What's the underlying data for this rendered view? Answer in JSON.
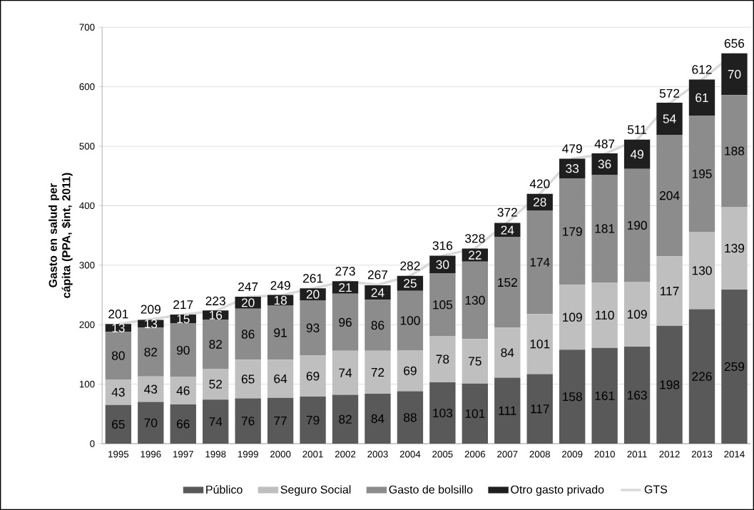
{
  "chart_data": {
    "type": "bar",
    "stacked": true,
    "ylabel": "Gasto en salud per cápita (PPA, $int, 2011)",
    "categories": [
      "1995",
      "1996",
      "1997",
      "1998",
      "1999",
      "2000",
      "2001",
      "2002",
      "2003",
      "2004",
      "2005",
      "2006",
      "2007",
      "2008",
      "2009",
      "2010",
      "2011",
      "2012",
      "2013",
      "2014"
    ],
    "ylim": [
      0,
      700
    ],
    "yticks": [
      0,
      100,
      200,
      300,
      400,
      500,
      600,
      700
    ],
    "grid": "y",
    "legend": "bottom",
    "data_labels": true,
    "series": [
      {
        "name": "Público",
        "color": "#595959",
        "values": [
          65,
          70,
          66,
          74,
          76,
          77,
          79,
          82,
          84,
          88,
          103,
          101,
          111,
          117,
          158,
          161,
          163,
          198,
          226,
          259
        ]
      },
      {
        "name": "Seguro Social",
        "color": "#bfbfbf",
        "values": [
          43,
          43,
          46,
          52,
          65,
          64,
          69,
          74,
          72,
          69,
          78,
          75,
          84,
          101,
          109,
          110,
          109,
          117,
          130,
          139
        ]
      },
      {
        "name": "Gasto de bolsillo",
        "color": "#8c8c8c",
        "values": [
          80,
          82,
          90,
          82,
          86,
          91,
          93,
          96,
          86,
          100,
          105,
          130,
          152,
          174,
          179,
          181,
          190,
          204,
          195,
          188
        ]
      },
      {
        "name": "Otro gasto privado",
        "color": "#1f1f1f",
        "values": [
          13,
          13,
          15,
          16,
          20,
          18,
          20,
          21,
          24,
          25,
          30,
          22,
          24,
          28,
          33,
          36,
          49,
          54,
          61,
          70
        ]
      },
      {
        "name": "GTS",
        "type": "line",
        "color": "#d9d9d9",
        "values": [
          201,
          209,
          217,
          223,
          247,
          249,
          261,
          273,
          267,
          282,
          316,
          328,
          372,
          420,
          479,
          487,
          511,
          572,
          612,
          656
        ]
      }
    ]
  }
}
